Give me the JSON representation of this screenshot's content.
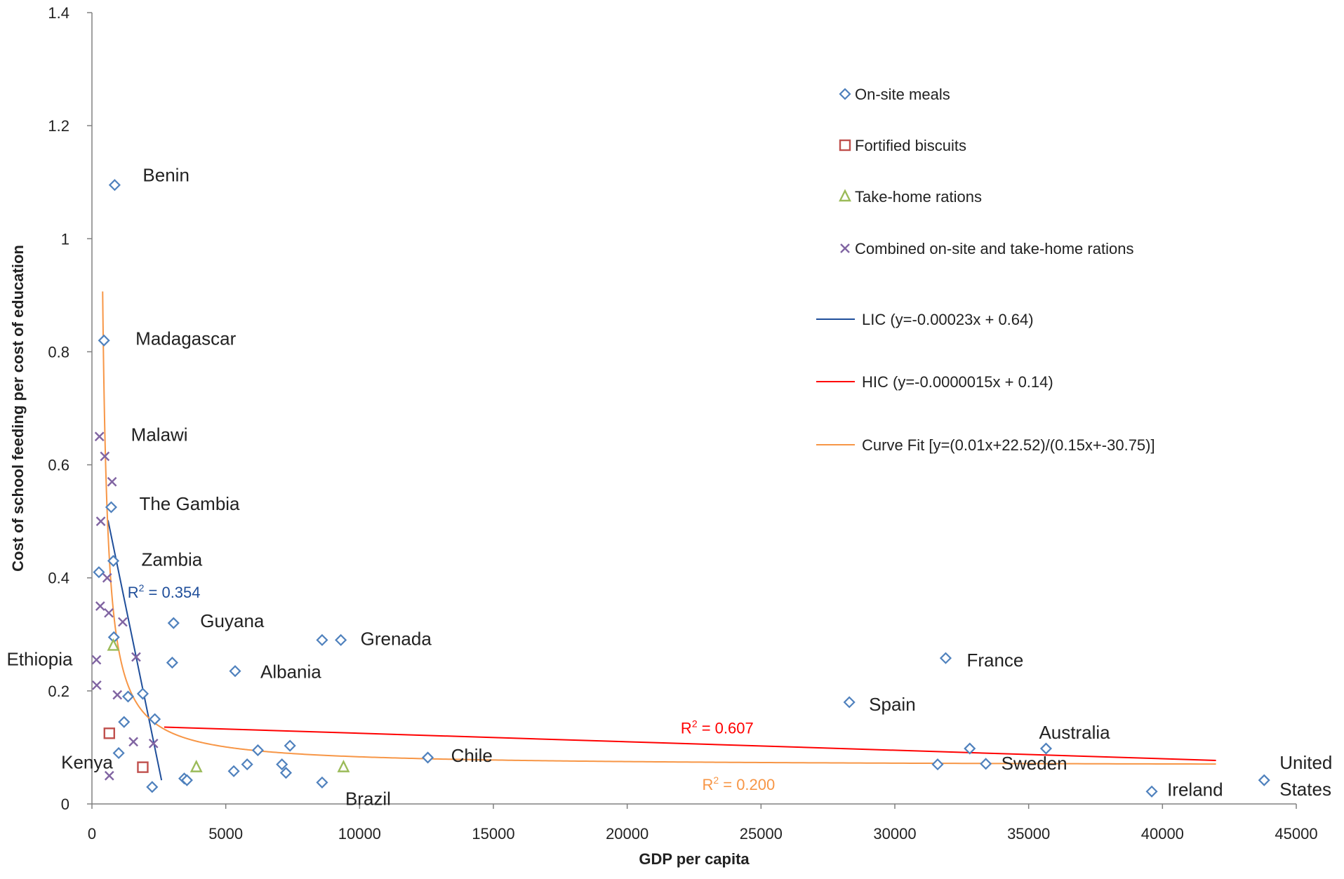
{
  "chart_data": {
    "type": "scatter",
    "title": "",
    "xlabel": "GDP per capita",
    "ylabel": "Cost of school feeding per cost of education",
    "xlim": [
      0,
      45000
    ],
    "ylim": [
      0,
      1.4
    ],
    "x_ticks": [
      0,
      5000,
      10000,
      15000,
      20000,
      25000,
      30000,
      35000,
      40000,
      45000
    ],
    "y_ticks": [
      0,
      0.2,
      0.4,
      0.6,
      0.8,
      1,
      1.2,
      1.4
    ],
    "x_tick_labels": [
      "0",
      "5000",
      "10000",
      "15000",
      "20000",
      "25000",
      "30000",
      "35000",
      "40000",
      "45000"
    ],
    "y_tick_labels": [
      "0",
      "0.2",
      "0.4",
      "0.6",
      "0.8",
      "1",
      "1.2",
      "1.4"
    ],
    "grid": false,
    "legend_position": "top-right",
    "series": [
      {
        "name": "On-site meals",
        "marker": "diamond",
        "color": "#4F81BD",
        "points": [
          [
            850,
            1.095
          ],
          [
            450,
            0.82
          ],
          [
            720,
            0.525
          ],
          [
            260,
            0.41
          ],
          [
            800,
            0.43
          ],
          [
            820,
            0.295
          ],
          [
            1350,
            0.19
          ],
          [
            1900,
            0.195
          ],
          [
            2350,
            0.15
          ],
          [
            1200,
            0.145
          ],
          [
            1000,
            0.09
          ],
          [
            2250,
            0.03
          ],
          [
            3450,
            0.045
          ],
          [
            3550,
            0.042
          ],
          [
            5300,
            0.058
          ],
          [
            5800,
            0.07
          ],
          [
            6200,
            0.095
          ],
          [
            7100,
            0.07
          ],
          [
            7250,
            0.055
          ],
          [
            7400,
            0.103
          ],
          [
            8600,
            0.038
          ],
          [
            3050,
            0.32
          ],
          [
            3000,
            0.25
          ],
          [
            5350,
            0.235
          ],
          [
            8600,
            0.29
          ],
          [
            9300,
            0.29
          ],
          [
            12550,
            0.082
          ],
          [
            28300,
            0.18
          ],
          [
            31900,
            0.258
          ],
          [
            31600,
            0.07
          ],
          [
            32800,
            0.098
          ],
          [
            33400,
            0.071
          ],
          [
            35650,
            0.098
          ],
          [
            39600,
            0.022
          ],
          [
            43800,
            0.042
          ]
        ]
      },
      {
        "name": "Fortified biscuits",
        "marker": "square",
        "color": "#C0504D",
        "points": [
          [
            650,
            0.125
          ],
          [
            1900,
            0.065
          ]
        ]
      },
      {
        "name": "Take-home rations",
        "marker": "triangle",
        "color": "#9BBB59",
        "points": [
          [
            800,
            0.28
          ],
          [
            3900,
            0.065
          ],
          [
            9400,
            0.065
          ]
        ]
      },
      {
        "name": "Combined on-site and take-home rations",
        "marker": "x",
        "color": "#8064A2",
        "points": [
          [
            280,
            0.65
          ],
          [
            480,
            0.615
          ],
          [
            750,
            0.57
          ],
          [
            330,
            0.5
          ],
          [
            570,
            0.4
          ],
          [
            310,
            0.35
          ],
          [
            630,
            0.338
          ],
          [
            1150,
            0.322
          ],
          [
            1650,
            0.26
          ],
          [
            170,
            0.255
          ],
          [
            180,
            0.21
          ],
          [
            950,
            0.193
          ],
          [
            1550,
            0.11
          ],
          [
            2300,
            0.107
          ],
          [
            650,
            0.05
          ]
        ]
      }
    ],
    "trendlines": [
      {
        "name": "LIC (y=-0.00023x  + 0.64)",
        "color": "#1F4E9A",
        "slope": -0.00023,
        "intercept": 0.64,
        "x_range": [
          600,
          2600
        ],
        "r2_label": "R² = 0.354",
        "r2_text": "0.354",
        "r2_color": "#1F4E9A"
      },
      {
        "name": "HIC (y=-0.0000015x  + 0.14)",
        "color": "#FF0000",
        "slope": -1.5e-06,
        "intercept": 0.14,
        "x_range": [
          2700,
          42000
        ],
        "r2_label": "R² = 0.607",
        "r2_text": "0.607",
        "r2_color": "#FF0000"
      },
      {
        "name": "Curve Fit [y=(0.01x+22.52)/(0.15x+-30.75)]",
        "color": "#F79646",
        "a": 0.01,
        "b": 22.52,
        "c": 0.15,
        "d": -30.75,
        "x_range": [
          400,
          42000
        ],
        "r2_label": "R² = 0.200",
        "r2_text": "0.200",
        "r2_color": "#F79646"
      }
    ],
    "annotations": [
      {
        "text": "Benin",
        "x": 850,
        "y": 1.095
      },
      {
        "text": "Madagascar",
        "x": 450,
        "y": 0.82
      },
      {
        "text": "Malawi",
        "x": 280,
        "y": 0.65
      },
      {
        "text": "The Gambia",
        "x": 720,
        "y": 0.525
      },
      {
        "text": "Zambia",
        "x": 800,
        "y": 0.43
      },
      {
        "text": "Guyana",
        "x": 3050,
        "y": 0.32
      },
      {
        "text": "Grenada",
        "x": 9300,
        "y": 0.29
      },
      {
        "text": "Ethiopia",
        "x": 170,
        "y": 0.255
      },
      {
        "text": "Albania",
        "x": 5350,
        "y": 0.235
      },
      {
        "text": "Kenya",
        "x": 1000,
        "y": 0.09
      },
      {
        "text": "Chile",
        "x": 12550,
        "y": 0.082
      },
      {
        "text": "Brazil",
        "x": 8600,
        "y": 0.038
      },
      {
        "text": "France",
        "x": 31900,
        "y": 0.258
      },
      {
        "text": "Spain",
        "x": 28300,
        "y": 0.18
      },
      {
        "text": "Australia",
        "x": 35650,
        "y": 0.098
      },
      {
        "text": "Sweden",
        "x": 33400,
        "y": 0.071
      },
      {
        "text": "Ireland",
        "x": 39600,
        "y": 0.022
      },
      {
        "text": "United",
        "x": 43800,
        "y": 0.042
      },
      {
        "text": "States",
        "x": 43800,
        "y": 0.042
      }
    ]
  }
}
